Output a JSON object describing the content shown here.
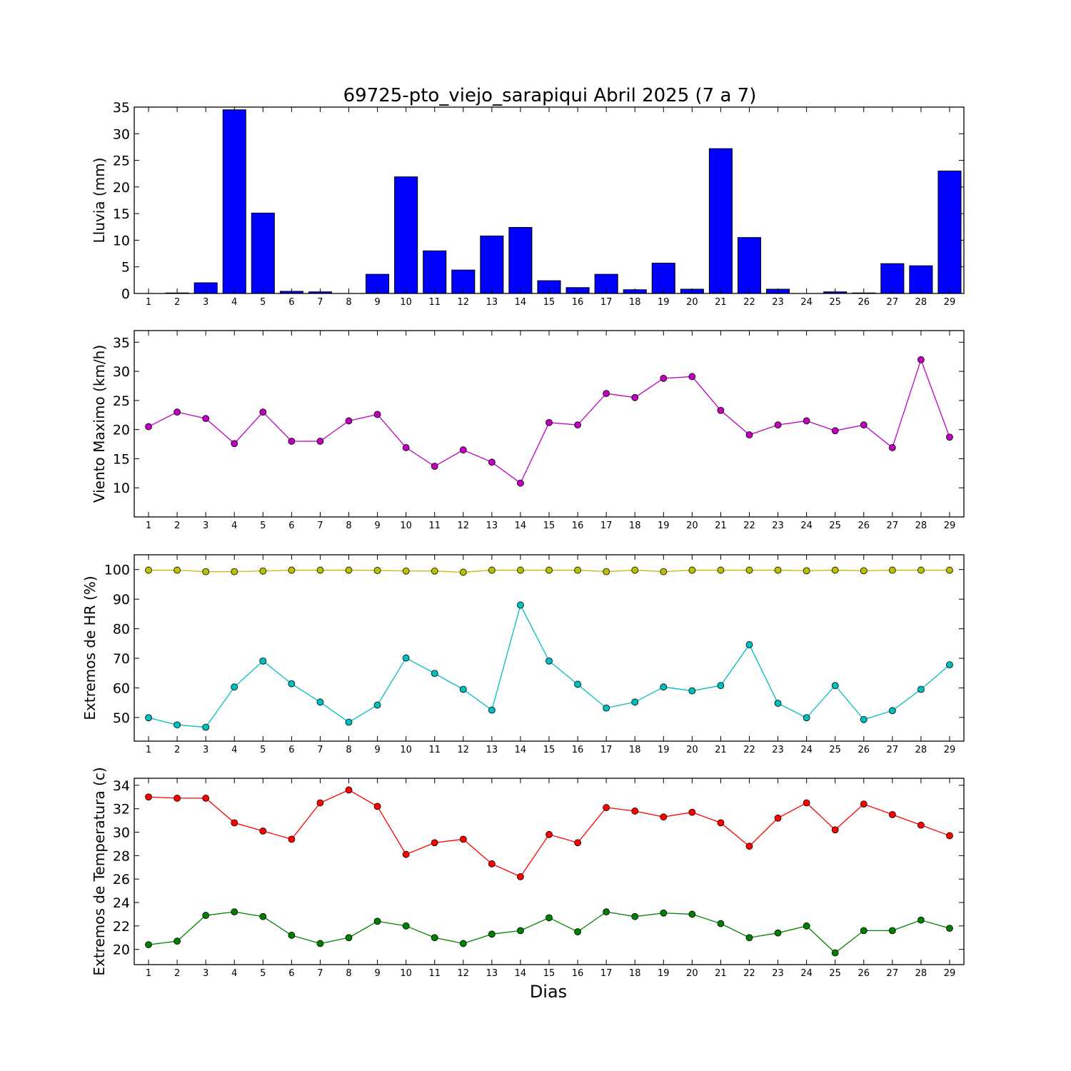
{
  "title": "69725-pto_viejo_sarapiqui Abril 2025  (7 a 7)",
  "xlabel": "Dias",
  "chart_data": [
    {
      "type": "bar",
      "ylabel": "Lluvia (mm)",
      "color": "#0000ff",
      "ylim": [
        0,
        35
      ],
      "yticks": [
        0,
        5,
        10,
        15,
        20,
        25,
        30,
        35
      ],
      "categories": [
        1,
        2,
        3,
        4,
        5,
        6,
        7,
        8,
        9,
        10,
        11,
        12,
        13,
        14,
        15,
        16,
        17,
        18,
        19,
        20,
        21,
        22,
        23,
        24,
        25,
        26,
        27,
        28,
        29
      ],
      "values": [
        0,
        0.1,
        2.0,
        34.5,
        15.1,
        0.4,
        0.3,
        0,
        3.6,
        21.9,
        8.0,
        4.4,
        10.8,
        12.4,
        2.4,
        1.1,
        3.6,
        0.7,
        5.7,
        0.8,
        27.2,
        10.5,
        0.8,
        0,
        0.3,
        0.1,
        5.6,
        5.2,
        23.0
      ]
    },
    {
      "type": "line",
      "ylabel": "Viento Maximo (km/h)",
      "ylim": [
        5,
        37
      ],
      "yticks": [
        10,
        15,
        20,
        25,
        30,
        35
      ],
      "x": [
        1,
        2,
        3,
        4,
        5,
        6,
        7,
        8,
        9,
        10,
        11,
        12,
        13,
        14,
        15,
        16,
        17,
        18,
        19,
        20,
        21,
        22,
        23,
        24,
        25,
        26,
        27,
        28,
        29
      ],
      "series": [
        {
          "color": "#bf00bf",
          "values": [
            20.5,
            23.0,
            21.9,
            17.6,
            23.0,
            18.0,
            18.0,
            21.5,
            22.6,
            16.9,
            13.7,
            16.5,
            14.4,
            10.8,
            21.2,
            20.8,
            26.2,
            25.5,
            28.8,
            29.1,
            23.3,
            19.1,
            20.8,
            21.5,
            19.8,
            20.8,
            16.9,
            32.0,
            18.7
          ]
        }
      ]
    },
    {
      "type": "line",
      "ylabel": "Extremos de HR (%)",
      "ylim": [
        42,
        105
      ],
      "yticks": [
        50,
        60,
        70,
        80,
        90,
        100
      ],
      "x": [
        1,
        2,
        3,
        4,
        5,
        6,
        7,
        8,
        9,
        10,
        11,
        12,
        13,
        14,
        15,
        16,
        17,
        18,
        19,
        20,
        21,
        22,
        23,
        24,
        25,
        26,
        27,
        28,
        29
      ],
      "series": [
        {
          "color": "#bfbf00",
          "values": [
            99.8,
            99.8,
            99.3,
            99.3,
            99.5,
            99.8,
            99.8,
            99.8,
            99.7,
            99.5,
            99.5,
            99.1,
            99.8,
            99.8,
            99.8,
            99.8,
            99.3,
            99.8,
            99.3,
            99.8,
            99.8,
            99.8,
            99.8,
            99.6,
            99.8,
            99.6,
            99.8,
            99.8,
            99.8
          ]
        },
        {
          "color": "#00bfbf",
          "values": [
            49.9,
            47.5,
            46.7,
            60.3,
            69.1,
            61.4,
            55.2,
            48.4,
            54.2,
            70.1,
            64.9,
            59.5,
            52.5,
            88.0,
            69.1,
            61.2,
            53.2,
            55.2,
            60.3,
            59.0,
            60.8,
            74.6,
            54.8,
            49.9,
            60.8,
            49.3,
            52.3,
            59.5,
            67.8
          ]
        }
      ]
    },
    {
      "type": "line",
      "ylabel": "Extremos de Temperatura (c)",
      "ylim": [
        18.7,
        34.6
      ],
      "yticks": [
        20,
        22,
        24,
        26,
        28,
        30,
        32,
        34
      ],
      "x": [
        1,
        2,
        3,
        4,
        5,
        6,
        7,
        8,
        9,
        10,
        11,
        12,
        13,
        14,
        15,
        16,
        17,
        18,
        19,
        20,
        21,
        22,
        23,
        24,
        25,
        26,
        27,
        28,
        29
      ],
      "series": [
        {
          "color": "#ff0000",
          "values": [
            33.0,
            32.9,
            32.9,
            30.8,
            30.1,
            29.4,
            32.5,
            33.6,
            32.2,
            28.1,
            29.1,
            29.4,
            27.3,
            26.2,
            29.8,
            29.1,
            32.1,
            31.8,
            31.3,
            31.7,
            30.8,
            28.8,
            31.2,
            32.5,
            30.2,
            32.4,
            31.5,
            30.6,
            29.7
          ]
        },
        {
          "color": "#008000",
          "values": [
            20.4,
            20.7,
            22.9,
            23.2,
            22.8,
            21.2,
            20.5,
            21.0,
            22.4,
            22.0,
            21.0,
            20.5,
            21.3,
            21.6,
            22.7,
            21.5,
            23.2,
            22.8,
            23.1,
            23.0,
            22.2,
            21.0,
            21.4,
            22.0,
            19.7,
            21.6,
            21.6,
            22.5,
            21.8
          ]
        }
      ]
    }
  ]
}
